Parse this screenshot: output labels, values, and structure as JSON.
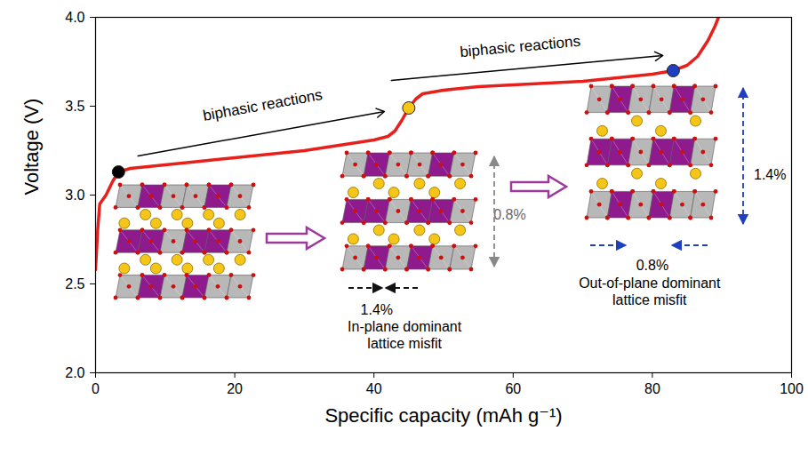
{
  "chart_data": {
    "type": "line",
    "xlabel": "Specific capacity (mAh g⁻¹)",
    "ylabel": "Voltage (V)",
    "xlim": [
      0,
      100
    ],
    "ylim": [
      2,
      4
    ],
    "xticks": [
      0,
      20,
      40,
      60,
      80,
      100
    ],
    "yticks": [
      {
        "value": 2,
        "label": "2.0"
      },
      2.5,
      {
        "value": 3,
        "label": "3.0"
      },
      3.5,
      {
        "value": 4,
        "label": "4.0"
      }
    ],
    "grid": false,
    "color": "#e8201c",
    "x": [
      0,
      0.3,
      0.6,
      1.5,
      2.5,
      3.3,
      5,
      10,
      15,
      20,
      25,
      30,
      35,
      40,
      42,
      43,
      44,
      45,
      46,
      47,
      50,
      55,
      60,
      65,
      70,
      75,
      80,
      83,
      85,
      86.5,
      88,
      89,
      89.5
    ],
    "values": [
      2.58,
      2.8,
      2.95,
      3.0,
      3.08,
      3.13,
      3.15,
      3.17,
      3.19,
      3.21,
      3.23,
      3.25,
      3.28,
      3.31,
      3.33,
      3.36,
      3.42,
      3.49,
      3.54,
      3.57,
      3.59,
      3.61,
      3.62,
      3.63,
      3.64,
      3.66,
      3.68,
      3.7,
      3.73,
      3.78,
      3.87,
      3.95,
      4.0
    ],
    "points": [
      {
        "x": 3.3,
        "y": 3.13,
        "color": "#000000"
      },
      {
        "x": 45,
        "y": 3.49,
        "color": "#f5c518"
      },
      {
        "x": 83,
        "y": 3.7,
        "color": "#1f3fbf"
      }
    ],
    "annotations": [
      {
        "text": "biphasic reactions",
        "x": 24,
        "y": 3.505,
        "color": "#000000",
        "arrow_from": [
          6.1,
          3.22
        ],
        "arrow_to": [
          41.5,
          3.47
        ]
      },
      {
        "text": "biphasic reactions",
        "x": 61,
        "y": 3.835,
        "color": "#000000",
        "arrow_from": [
          42.5,
          3.645
        ],
        "arrow_to": [
          81.5,
          3.785
        ]
      },
      {
        "text": "0.8%",
        "x": 59.5,
        "y": 2.895,
        "color": "#666666"
      },
      {
        "text": "1.4%",
        "x": 40.4,
        "y": 2.36,
        "color": "#000000"
      },
      {
        "text": "In-plane dominant\nlattice misfit",
        "x": 44.4,
        "y": 2.215,
        "color": "#000000"
      },
      {
        "text": "1.4%",
        "x": 96.9,
        "y": 3.12,
        "color": "#000000"
      },
      {
        "text": "0.8%",
        "x": 80,
        "y": 2.61,
        "color": "#000000"
      },
      {
        "text": "Out-of-plane dominant\nlattice misfit",
        "x": 79.6,
        "y": 2.46,
        "color": "#000000"
      }
    ]
  }
}
